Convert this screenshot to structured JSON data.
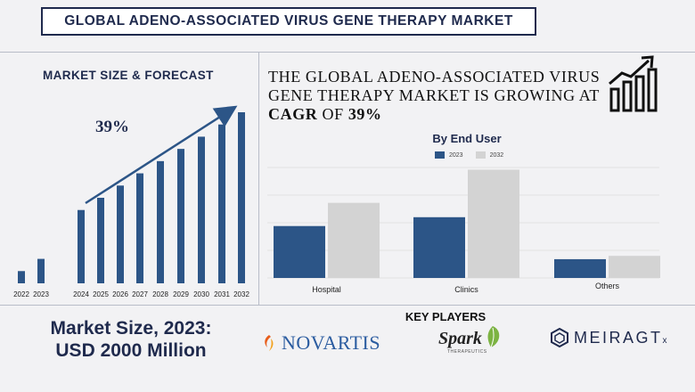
{
  "title": "GLOBAL ADENO-ASSOCIATED VIRUS GENE THERAPY MARKET",
  "forecast": {
    "heading": "MARKET SIZE & FORECAST",
    "cagr_label": "39%"
  },
  "headline": {
    "line1": "THE GLOBAL ADENO-ASSOCIATED VIRUS",
    "line2": "GENE THERAPY MARKET IS GROWING AT",
    "cagr_word": "CAGR",
    "of_word": " OF ",
    "cagr_value": "39%"
  },
  "end_user": {
    "heading": "By End User"
  },
  "market_size": {
    "line1": "Market Size, 2023:",
    "line2": "USD 2000 Million"
  },
  "key_players": {
    "heading": "KEY PLAYERS",
    "novartis": "NOVARTIS",
    "spark": "Spark",
    "spark_sub": "THERAPEUTICS",
    "meira": "MEIRAGT",
    "meira_sub": "x"
  },
  "icons": [
    "growth-chart-icon",
    "novartis-logo-icon",
    "spark-leaf-icon",
    "meira-cube-icon"
  ],
  "colors": {
    "navy": "#1f2a4d",
    "bar_blue": "#2c5587",
    "bar_gray": "#d3d3d3"
  },
  "chart_data": [
    {
      "type": "bar",
      "title": "",
      "categories": [
        "2022",
        "2023",
        "2024",
        "2025",
        "2026",
        "2027",
        "2028",
        "2029",
        "2030",
        "2031",
        "2032"
      ],
      "values": [
        1,
        2,
        6,
        7,
        8,
        9,
        10,
        11,
        12,
        13,
        14
      ],
      "ylim": [
        0,
        14
      ],
      "xlabel": "",
      "ylabel": "",
      "grid": false,
      "annotations": [
        "39%"
      ]
    },
    {
      "type": "bar",
      "title": "By End User",
      "categories": [
        "Hospital",
        "Clinics",
        "Others"
      ],
      "series": [
        {
          "name": "2023",
          "values": [
            47,
            55,
            17
          ]
        },
        {
          "name": "2032",
          "values": [
            68,
            98,
            20
          ]
        }
      ],
      "ylim": [
        0,
        100
      ],
      "grid": true,
      "legend": "top-center",
      "xlabel": "",
      "ylabel": ""
    }
  ]
}
